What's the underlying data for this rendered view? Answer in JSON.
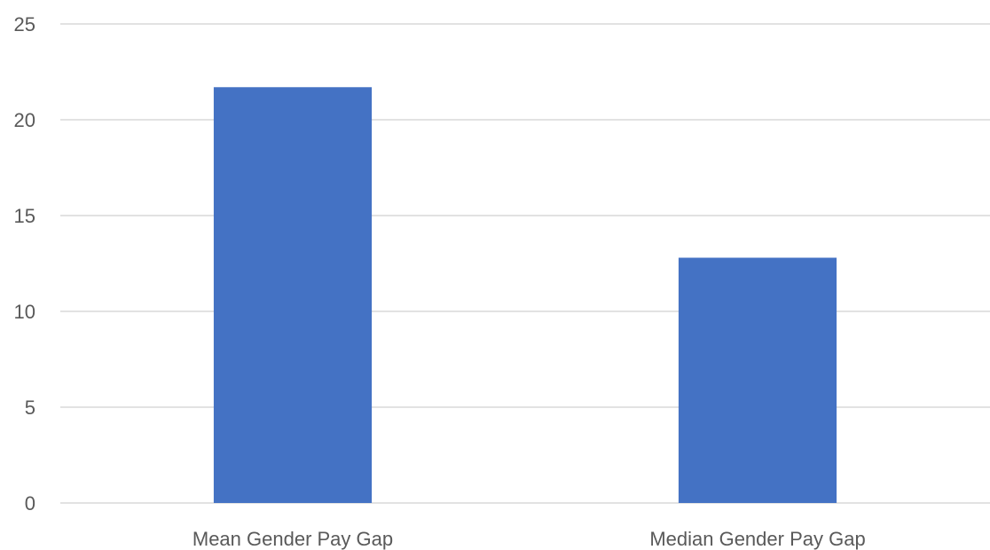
{
  "chart_data": {
    "type": "bar",
    "categories": [
      "Mean Gender Pay Gap",
      "Median Gender Pay Gap"
    ],
    "values": [
      21.7,
      12.8
    ],
    "title": "",
    "xlabel": "",
    "ylabel": "",
    "ylim": [
      0,
      25
    ],
    "yticks": [
      0,
      5,
      10,
      15,
      20,
      25
    ],
    "grid": true,
    "legend": "none",
    "bar_color": "#4472c4",
    "gridline_color": "#d9d9d9",
    "label_color": "#595959"
  }
}
